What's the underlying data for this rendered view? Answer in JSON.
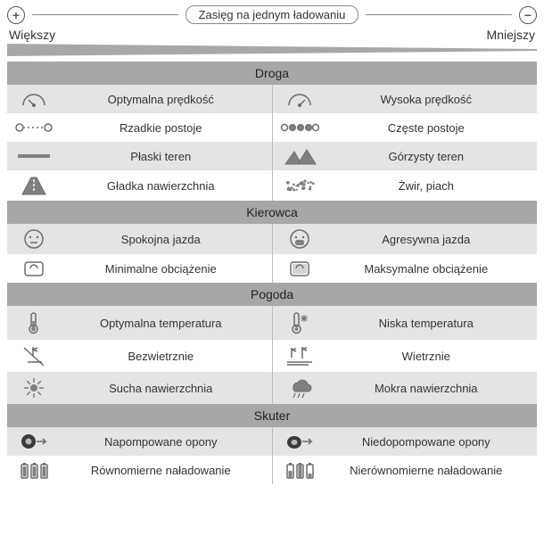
{
  "colors": {
    "section_header_bg": "#a7a7a7",
    "row_even_bg": "#e4e4e4",
    "row_odd_bg": "#ffffff",
    "divider": "#bdbdbd",
    "wedge_fill": "#a8a8a8",
    "text": "#333333",
    "icon_stroke": "#6b6b6b",
    "icon_fill": "#808080"
  },
  "header": {
    "title": "Zasięg na jednym ładowaniu",
    "plus": "+",
    "minus": "−",
    "left_label": "Większy",
    "right_label": "Mniejszy"
  },
  "sections": [
    {
      "title": "Droga",
      "rows": [
        {
          "left": {
            "icon": "speedometer-low",
            "label": "Optymalna prędkość"
          },
          "right": {
            "icon": "speedometer-high",
            "label": "Wysoka prędkość"
          }
        },
        {
          "left": {
            "icon": "stops-few",
            "label": "Rzadkie postoje"
          },
          "right": {
            "icon": "stops-many",
            "label": "Częste postoje"
          }
        },
        {
          "left": {
            "icon": "flat-terrain",
            "label": "Płaski teren"
          },
          "right": {
            "icon": "mountains",
            "label": "Górzysty teren"
          }
        },
        {
          "left": {
            "icon": "road-smooth",
            "label": "Gładka nawierzchnia"
          },
          "right": {
            "icon": "gravel",
            "label": "Żwir, piach"
          }
        }
      ]
    },
    {
      "title": "Kierowca",
      "rows": [
        {
          "left": {
            "icon": "face-calm",
            "label": "Spokojna jazda"
          },
          "right": {
            "icon": "face-tense",
            "label": "Agresywna jazda"
          }
        },
        {
          "left": {
            "icon": "scale-light",
            "label": "Minimalne obciążenie"
          },
          "right": {
            "icon": "scale-heavy",
            "label": "Maksymalne obciążenie"
          }
        }
      ]
    },
    {
      "title": "Pogoda",
      "rows": [
        {
          "left": {
            "icon": "thermo-optimal",
            "label": "Optymalna temperatura"
          },
          "right": {
            "icon": "thermo-cold",
            "label": "Niska temperatura"
          }
        },
        {
          "left": {
            "icon": "no-wind",
            "label": "Bezwietrznie"
          },
          "right": {
            "icon": "wind",
            "label": "Wietrznie"
          }
        },
        {
          "left": {
            "icon": "sun",
            "label": "Sucha nawierzchnia"
          },
          "right": {
            "icon": "rain",
            "label": "Mokra nawierzchnia"
          }
        }
      ]
    },
    {
      "title": "Skuter",
      "rows": [
        {
          "left": {
            "icon": "tire-full",
            "label": "Napompowane opony"
          },
          "right": {
            "icon": "tire-low",
            "label": "Niedopompowane opony"
          }
        },
        {
          "left": {
            "icon": "batteries-even",
            "label": "Równomierne naładowanie"
          },
          "right": {
            "icon": "batteries-uneven",
            "label": "Nierównomierne naładowanie"
          }
        }
      ]
    }
  ]
}
